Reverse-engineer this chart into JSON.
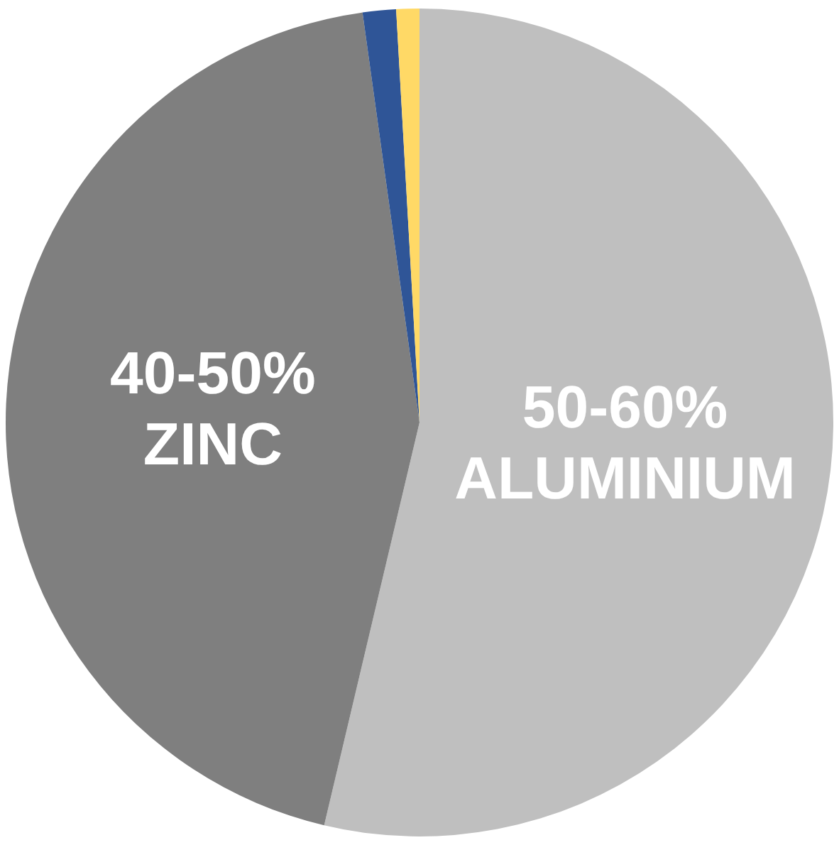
{
  "chart_data": {
    "type": "pie",
    "categories": [
      "50-60% ALUMINIUM",
      "40-50% ZINC",
      null,
      null
    ],
    "values": [
      53.7,
      44.1,
      1.3,
      0.9
    ],
    "colors": [
      "#bfbfbf",
      "#7f7f7f",
      "#2f5597",
      "#ffd966"
    ],
    "legend": false
  }
}
